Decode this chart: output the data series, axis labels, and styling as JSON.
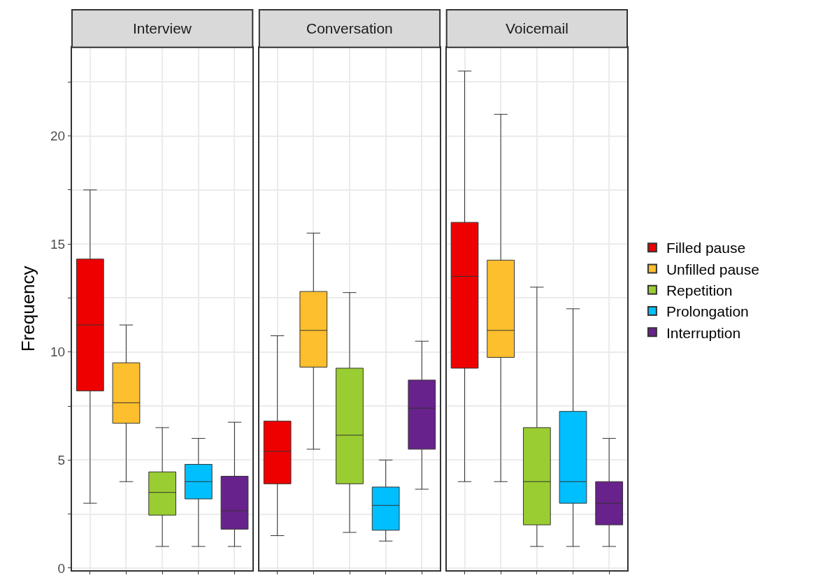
{
  "chart_data": {
    "type": "box",
    "ylabel": "Frequency",
    "categories": [
      "Interview",
      "Conversation",
      "Voicemail"
    ],
    "ylim": [
      -0.1,
      24.1
    ],
    "yticks": [
      0,
      {
        "value": 2.5,
        "label": null
      },
      5,
      {
        "value": 7.5,
        "label": null
      },
      10,
      {
        "value": 12.5,
        "label": null
      },
      15,
      {
        "value": 17.5,
        "label": null
      },
      20,
      {
        "value": 22.5,
        "label": null
      }
    ],
    "grid": true,
    "legend": "right",
    "series": [
      {
        "name": "Filled pause",
        "color": "#ee0000",
        "boxes": [
          {
            "low": 3.0,
            "q1": 8.2,
            "median": 11.25,
            "q3": 14.3,
            "high": 17.5
          },
          {
            "low": 1.5,
            "q1": 3.9,
            "median": 5.4,
            "q3": 6.8,
            "high": 10.75
          },
          {
            "low": 4.0,
            "q1": 9.25,
            "median": 13.5,
            "q3": 16.0,
            "high": 23.0
          }
        ]
      },
      {
        "name": "Unfilled pause",
        "color": "#fdbf2d",
        "boxes": [
          {
            "low": 4.0,
            "q1": 6.7,
            "median": 7.65,
            "q3": 9.5,
            "high": 11.25
          },
          {
            "low": 5.5,
            "q1": 9.3,
            "median": 11.0,
            "q3": 12.8,
            "high": 15.5
          },
          {
            "low": 4.0,
            "q1": 9.75,
            "median": 11.0,
            "q3": 14.25,
            "high": 21.0
          }
        ]
      },
      {
        "name": "Repetition",
        "color": "#9acd32",
        "boxes": [
          {
            "low": 1.0,
            "q1": 2.45,
            "median": 3.5,
            "q3": 4.45,
            "high": 6.5
          },
          {
            "low": 1.65,
            "q1": 3.9,
            "median": 6.15,
            "q3": 9.25,
            "high": 12.75
          },
          {
            "low": 1.0,
            "q1": 2.0,
            "median": 4.0,
            "q3": 6.5,
            "high": 13.0
          }
        ]
      },
      {
        "name": "Prolongation",
        "color": "#00bfff",
        "boxes": [
          {
            "low": 1.0,
            "q1": 3.2,
            "median": 4.0,
            "q3": 4.8,
            "high": 6.0
          },
          {
            "low": 1.25,
            "q1": 1.75,
            "median": 2.9,
            "q3": 3.75,
            "high": 5.0
          },
          {
            "low": 1.0,
            "q1": 3.0,
            "median": 4.0,
            "q3": 7.25,
            "high": 12.0
          }
        ]
      },
      {
        "name": "Interruption",
        "color": "#68228b",
        "boxes": [
          {
            "low": 1.0,
            "q1": 1.8,
            "median": 2.65,
            "q3": 4.25,
            "high": 6.75
          },
          {
            "low": 3.65,
            "q1": 5.5,
            "median": 7.4,
            "q3": 8.7,
            "high": 10.5
          },
          {
            "low": 1.0,
            "q1": 2.0,
            "median": 3.0,
            "q3": 4.0,
            "high": 6.0
          }
        ]
      }
    ]
  }
}
